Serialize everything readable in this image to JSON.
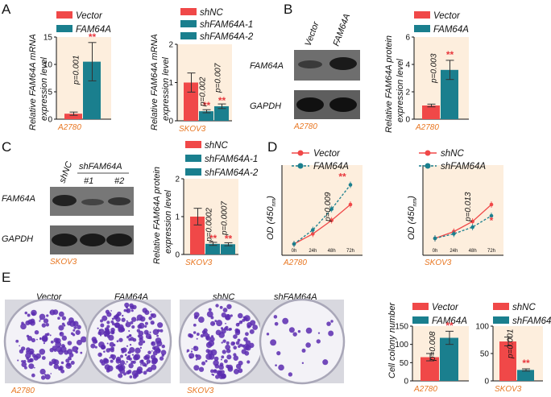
{
  "colors": {
    "red": "#f04848",
    "teal": "#1a7f8e",
    "panel": "#fdeedd",
    "orange": "#e87722",
    "star": "#e8383d"
  },
  "panel_labels": [
    "A",
    "B",
    "C",
    "D",
    "E"
  ],
  "legends": {
    "vector_fam": [
      "Vector",
      "FAM64A"
    ],
    "sh3": [
      "shNC",
      "shFAM64A-1",
      "shFAM64A-2"
    ],
    "sh2": [
      "shNC",
      "shFAM64A"
    ]
  },
  "cell_lines": {
    "a2780": "A2780",
    "skov3": "SKOV3"
  },
  "y_labels": {
    "mrna": [
      "Relative FAM64A mRNA",
      "expression level"
    ],
    "protein": [
      "Relative FAM64A protein",
      "expression level"
    ],
    "od": "OD (450",
    "od_sub": "nm",
    "colony": "Cell colony number"
  },
  "western": {
    "b_lanes": [
      "Vector",
      "FAM64A"
    ],
    "c_lanes": [
      "shNC",
      "shFAM64A",
      "#1",
      "#2"
    ],
    "rows": [
      "FAM64A",
      "GAPDH"
    ]
  },
  "colony_labels": [
    "Vector",
    "FAM64A",
    "shNC",
    "shFAM64A"
  ],
  "sig": {
    "double": "**",
    "single": "*"
  },
  "chart_data": [
    {
      "id": "A1",
      "type": "bar",
      "title": "",
      "cell": "A2780",
      "categories": [
        "Vector",
        "FAM64A"
      ],
      "values": [
        1,
        10.5
      ],
      "errors": [
        0.3,
        3.5
      ],
      "ylim": [
        0,
        15
      ],
      "yticks": [
        0,
        5,
        10,
        15
      ],
      "pvalues": [
        "p=0.001"
      ],
      "stars": [
        "",
        "**"
      ]
    },
    {
      "id": "A2",
      "type": "bar",
      "cell": "SKOV3",
      "categories": [
        "shNC",
        "shFAM64A-1",
        "shFAM64A-2"
      ],
      "values": [
        1,
        0.25,
        0.38
      ],
      "errors": [
        0.25,
        0.04,
        0.06
      ],
      "ylim": [
        0,
        2
      ],
      "yticks": [
        0,
        1,
        2
      ],
      "pvalues": [
        "p=0.002",
        "p=0.007"
      ],
      "stars": [
        "",
        "**",
        "**"
      ]
    },
    {
      "id": "B",
      "type": "bar",
      "cell": "A2780",
      "categories": [
        "Vector",
        "FAM64A"
      ],
      "values": [
        1,
        3.6
      ],
      "errors": [
        0.1,
        0.7
      ],
      "ylim": [
        0,
        6
      ],
      "yticks": [
        0,
        2,
        4,
        6
      ],
      "pvalues": [
        "p=0.003"
      ],
      "stars": [
        "",
        "**"
      ]
    },
    {
      "id": "C",
      "type": "bar",
      "cell": "SKOV3",
      "categories": [
        "shNC",
        "shFAM64A-1",
        "shFAM64A-2"
      ],
      "values": [
        1,
        0.28,
        0.27
      ],
      "errors": [
        0.22,
        0.04,
        0.04
      ],
      "ylim": [
        0,
        2
      ],
      "yticks": [
        0,
        1,
        2
      ],
      "pvalues": [
        "p=0.0002",
        "p=0.0007"
      ],
      "stars": [
        "",
        "**",
        "**"
      ]
    },
    {
      "id": "D1",
      "type": "line",
      "cell": "A2780",
      "x": [
        "0h",
        "24h",
        "48h",
        "72h"
      ],
      "series": [
        {
          "name": "Vector",
          "values": [
            0.2,
            0.38,
            0.62,
            0.9
          ]
        },
        {
          "name": "FAM64A",
          "values": [
            0.2,
            0.45,
            0.82,
            1.25
          ]
        }
      ],
      "ylim": [
        0,
        1.6
      ],
      "pvalue": "p=0.009",
      "star": "**"
    },
    {
      "id": "D2",
      "type": "line",
      "cell": "SKOV3",
      "x": [
        "0h",
        "24h",
        "48h",
        "72h"
      ],
      "series": [
        {
          "name": "shNC",
          "values": [
            0.3,
            0.42,
            0.6,
            0.9
          ]
        },
        {
          "name": "shFAM64A",
          "values": [
            0.3,
            0.38,
            0.5,
            0.7
          ]
        }
      ],
      "ylim": [
        0,
        1.6
      ],
      "pvalue": "p=0.013",
      "star": "*"
    },
    {
      "id": "E1",
      "type": "bar",
      "cell": "A2780",
      "categories": [
        "Vector",
        "FAM64A"
      ],
      "values": [
        65,
        118
      ],
      "errors": [
        10,
        18
      ],
      "ylim": [
        0,
        150
      ],
      "yticks": [
        0,
        50,
        100,
        150
      ],
      "pvalues": [
        "p=0.008"
      ],
      "stars": [
        "",
        "**"
      ]
    },
    {
      "id": "E2",
      "type": "bar",
      "cell": "SKOV3",
      "categories": [
        "shNC",
        "shFAM64A"
      ],
      "values": [
        72,
        20
      ],
      "errors": [
        8,
        2
      ],
      "ylim": [
        0,
        100
      ],
      "yticks": [
        0,
        50,
        100
      ],
      "pvalues": [
        "p=0.001"
      ],
      "stars": [
        "",
        "**"
      ]
    }
  ]
}
